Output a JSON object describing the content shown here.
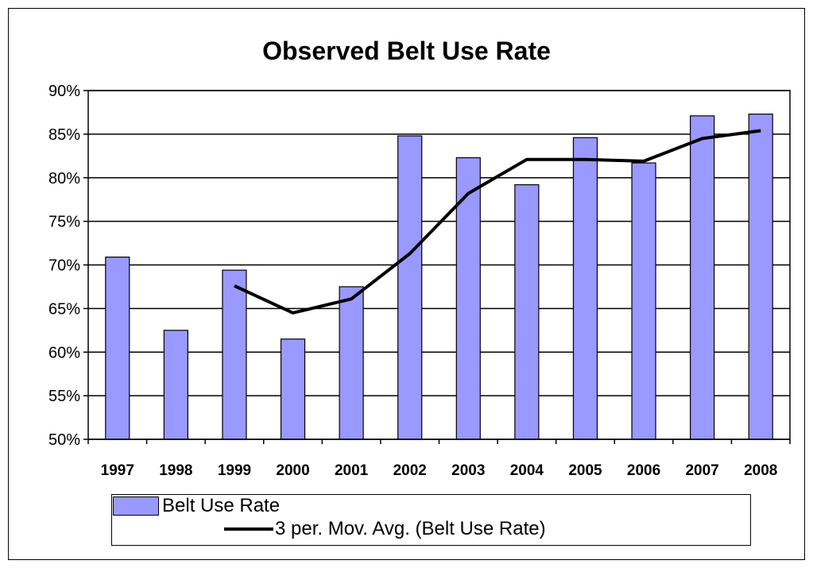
{
  "chart_data": {
    "type": "bar",
    "title": "Observed Belt Use Rate",
    "categories": [
      "1997",
      "1998",
      "1999",
      "2000",
      "2001",
      "2002",
      "2003",
      "2004",
      "2005",
      "2006",
      "2007",
      "2008"
    ],
    "series": [
      {
        "name": "Belt Use Rate",
        "type": "bar",
        "color": "#9999ff",
        "values": [
          0.709,
          0.625,
          0.694,
          0.615,
          0.675,
          0.848,
          0.823,
          0.792,
          0.846,
          0.817,
          0.871,
          0.873
        ]
      },
      {
        "name": "3 per. Mov. Avg. (Belt Use Rate)",
        "type": "line",
        "color": "#000000",
        "values": [
          null,
          null,
          0.676,
          0.645,
          0.661,
          0.713,
          0.782,
          0.821,
          0.821,
          0.819,
          0.845,
          0.854
        ]
      }
    ],
    "y_ticks": [
      "50%",
      "55%",
      "60%",
      "65%",
      "70%",
      "75%",
      "80%",
      "85%",
      "90%"
    ],
    "ylim": [
      0.5,
      0.9
    ],
    "grid": true,
    "legend_position": "bottom"
  }
}
